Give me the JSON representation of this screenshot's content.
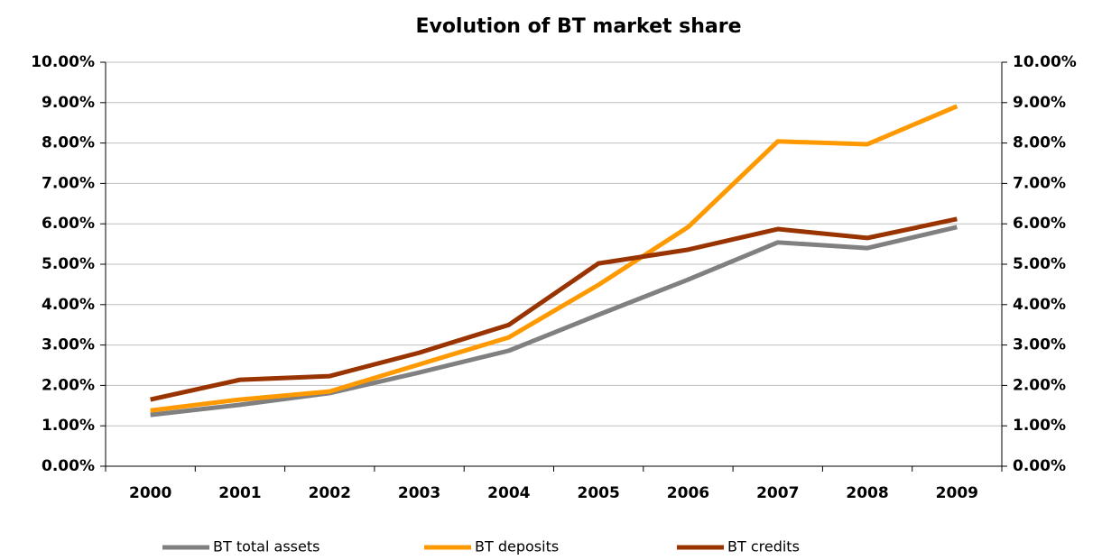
{
  "chart_data": {
    "type": "line",
    "title": "Evolution of BT market share",
    "categories": [
      "2000",
      "2001",
      "2002",
      "2003",
      "2004",
      "2005",
      "2006",
      "2007",
      "2008",
      "2009"
    ],
    "series": [
      {
        "name": "BT total assets",
        "color": "#808080",
        "values": [
          1.27,
          1.52,
          1.81,
          2.32,
          2.86,
          3.75,
          4.62,
          5.54,
          5.4,
          5.92
        ]
      },
      {
        "name": "BT deposits",
        "color": "#ff9900",
        "values": [
          1.38,
          1.65,
          1.85,
          2.52,
          3.19,
          4.49,
          5.92,
          8.04,
          7.97,
          8.91
        ]
      },
      {
        "name": "BT credits",
        "color": "#993300",
        "values": [
          1.65,
          2.14,
          2.23,
          2.81,
          3.5,
          5.02,
          5.36,
          5.87,
          5.65,
          6.12
        ]
      }
    ],
    "ylim": [
      0,
      10
    ],
    "yticks": [
      {
        "value": 0,
        "label": "0.00%"
      },
      {
        "value": 1,
        "label": "1.00%"
      },
      {
        "value": 2,
        "label": "2.00%"
      },
      {
        "value": 3,
        "label": "3.00%"
      },
      {
        "value": 4,
        "label": "4.00%"
      },
      {
        "value": 5,
        "label": "5.00%"
      },
      {
        "value": 6,
        "label": "6.00%"
      },
      {
        "value": 7,
        "label": "7.00%"
      },
      {
        "value": 8,
        "label": "8.00%"
      },
      {
        "value": 9,
        "label": "9.00%"
      },
      {
        "value": 10,
        "label": "10.00%"
      }
    ],
    "y2lim": [
      0,
      10
    ],
    "y2ticks": [
      {
        "value": 0,
        "label": "0.00%"
      },
      {
        "value": 1,
        "label": "1.00%"
      },
      {
        "value": 2,
        "label": "2.00%"
      },
      {
        "value": 3,
        "label": "3.00%"
      },
      {
        "value": 4,
        "label": "4.00%"
      },
      {
        "value": 5,
        "label": "5.00%"
      },
      {
        "value": 6,
        "label": "6.00%"
      },
      {
        "value": 7,
        "label": "7.00%"
      },
      {
        "value": 8,
        "label": "8.00%"
      },
      {
        "value": 9,
        "label": "9.00%"
      },
      {
        "value": 10,
        "label": "10.00%"
      }
    ],
    "grid": true,
    "legend": "bottom"
  }
}
